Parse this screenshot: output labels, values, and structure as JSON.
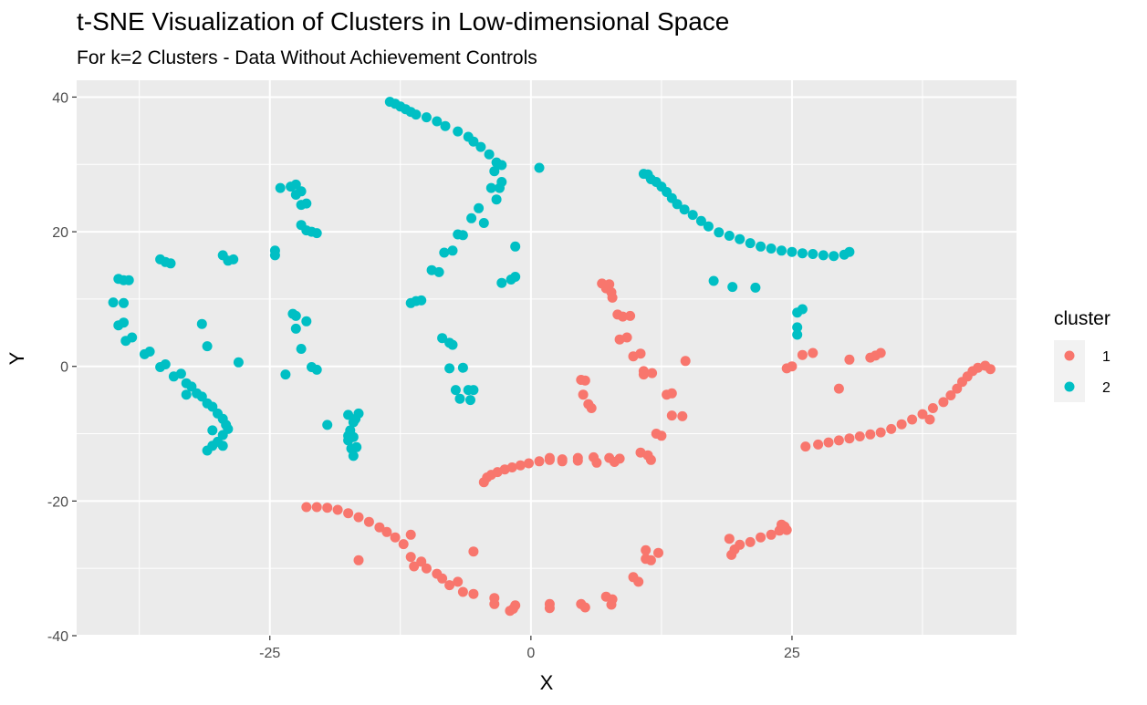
{
  "chart_data": {
    "type": "scatter",
    "title": "t-SNE Visualization of Clusters in Low-dimensional Space",
    "subtitle": "For k=2 Clusters - Data Without Achievement Controls",
    "xlabel": "X",
    "ylabel": "Y",
    "xlim": [
      -43.5,
      46.5
    ],
    "ylim": [
      -40,
      42.5
    ],
    "x_ticks": [
      -25,
      0,
      25
    ],
    "y_ticks": [
      40,
      20,
      0,
      -20,
      -40
    ],
    "x_tick_labels": [
      "-25",
      "0",
      "25"
    ],
    "y_tick_labels": [
      "40",
      "20",
      "0",
      "-20",
      "-40"
    ],
    "grid": true,
    "panel_background": "#ebebeb",
    "legend": {
      "title": "cluster",
      "position": "right"
    },
    "series": [
      {
        "name": "1",
        "color": "#f8766d",
        "points": [
          [
            -21.5,
            -20.9
          ],
          [
            -20.5,
            -20.9
          ],
          [
            -19.5,
            -21.0
          ],
          [
            -18.5,
            -21.3
          ],
          [
            -17.5,
            -21.8
          ],
          [
            -16.5,
            -22.4
          ],
          [
            -15.5,
            -23.1
          ],
          [
            -14.5,
            -23.9
          ],
          [
            -13.8,
            -24.6
          ],
          [
            -13.0,
            -25.4
          ],
          [
            -12.2,
            -26.4
          ],
          [
            -11.5,
            -25.0
          ],
          [
            -11.5,
            -28.3
          ],
          [
            -11.2,
            -29.7
          ],
          [
            -10.5,
            -29.0
          ],
          [
            -10.0,
            -30.0
          ],
          [
            -9.0,
            -30.8
          ],
          [
            -8.5,
            -31.5
          ],
          [
            -7.8,
            -32.5
          ],
          [
            -7.0,
            -32.0
          ],
          [
            -6.5,
            -33.5
          ],
          [
            -5.5,
            -27.5
          ],
          [
            -5.5,
            -33.8
          ],
          [
            -3.5,
            -34.4
          ],
          [
            -3.5,
            -35.3
          ],
          [
            -1.5,
            -35.5
          ],
          [
            -1.7,
            -36.0
          ],
          [
            -2.0,
            -36.3
          ],
          [
            1.8,
            -35.3
          ],
          [
            1.8,
            -35.9
          ],
          [
            4.8,
            -35.3
          ],
          [
            5.2,
            -35.8
          ],
          [
            7.2,
            -34.2
          ],
          [
            7.8,
            -34.6
          ],
          [
            7.7,
            -35.4
          ],
          [
            9.8,
            -31.3
          ],
          [
            10.3,
            -32.0
          ],
          [
            11.0,
            -27.3
          ],
          [
            11.0,
            -28.6
          ],
          [
            11.5,
            -28.8
          ],
          [
            12.2,
            -27.7
          ],
          [
            -16.5,
            -28.8
          ],
          [
            -4.5,
            -17.2
          ],
          [
            -4.2,
            -16.5
          ],
          [
            -3.8,
            -16.1
          ],
          [
            -3.2,
            -15.7
          ],
          [
            -2.5,
            -15.3
          ],
          [
            -1.8,
            -15.0
          ],
          [
            -1.0,
            -14.7
          ],
          [
            -0.2,
            -14.4
          ],
          [
            0.8,
            -14.1
          ],
          [
            1.8,
            -13.9
          ],
          [
            3.0,
            -13.8
          ],
          [
            4.5,
            -13.6
          ],
          [
            6.0,
            -13.5
          ],
          [
            7.5,
            -13.6
          ],
          [
            8.5,
            -13.7
          ],
          [
            1.8,
            -13.6
          ],
          [
            3.0,
            -14.1
          ],
          [
            4.5,
            -14.0
          ],
          [
            6.3,
            -14.3
          ],
          [
            8.0,
            -14.2
          ],
          [
            10.5,
            -12.8
          ],
          [
            11.2,
            -13.2
          ],
          [
            11.5,
            -13.9
          ],
          [
            6.8,
            12.3
          ],
          [
            7.2,
            11.6
          ],
          [
            7.5,
            12.2
          ],
          [
            7.7,
            11.0
          ],
          [
            7.8,
            10.2
          ],
          [
            8.3,
            7.7
          ],
          [
            8.8,
            7.4
          ],
          [
            9.5,
            7.5
          ],
          [
            9.2,
            4.3
          ],
          [
            8.5,
            4.0
          ],
          [
            9.8,
            1.5
          ],
          [
            10.5,
            1.9
          ],
          [
            10.8,
            -0.7
          ],
          [
            10.8,
            -1.2
          ],
          [
            11.6,
            -1.0
          ],
          [
            13.0,
            -4.2
          ],
          [
            13.5,
            -4.0
          ],
          [
            13.5,
            -7.3
          ],
          [
            14.5,
            -7.4
          ],
          [
            14.8,
            0.8
          ],
          [
            12.0,
            -10.0
          ],
          [
            12.5,
            -10.3
          ],
          [
            4.8,
            -2.0
          ],
          [
            5.2,
            -2.1
          ],
          [
            5.0,
            -4.2
          ],
          [
            5.5,
            -5.6
          ],
          [
            5.8,
            -6.2
          ],
          [
            26.3,
            -11.9
          ],
          [
            27.5,
            -11.6
          ],
          [
            28.5,
            -11.3
          ],
          [
            29.5,
            -11.0
          ],
          [
            30.5,
            -10.7
          ],
          [
            31.5,
            -10.4
          ],
          [
            32.5,
            -10.1
          ],
          [
            33.5,
            -9.8
          ],
          [
            34.5,
            -9.3
          ],
          [
            35.5,
            -8.6
          ],
          [
            36.5,
            -7.9
          ],
          [
            37.5,
            -7.1
          ],
          [
            38.5,
            -6.2
          ],
          [
            39.5,
            -5.3
          ],
          [
            40.2,
            -4.3
          ],
          [
            40.8,
            -3.3
          ],
          [
            41.3,
            -2.3
          ],
          [
            41.8,
            -1.5
          ],
          [
            42.3,
            -0.7
          ],
          [
            42.8,
            -0.2
          ],
          [
            43.5,
            0.1
          ],
          [
            44.0,
            -0.4
          ],
          [
            38.2,
            -7.9
          ],
          [
            19.0,
            -25.6
          ],
          [
            19.2,
            -28.0
          ],
          [
            19.5,
            -27.2
          ],
          [
            20.0,
            -26.5
          ],
          [
            21.0,
            -26.1
          ],
          [
            22.0,
            -25.4
          ],
          [
            23.0,
            -25.0
          ],
          [
            23.8,
            -24.4
          ],
          [
            24.3,
            -23.8
          ],
          [
            24.5,
            -24.3
          ],
          [
            24.0,
            -23.5
          ],
          [
            24.5,
            -0.3
          ],
          [
            25.0,
            0.0
          ],
          [
            26.0,
            1.7
          ],
          [
            27.0,
            2.0
          ],
          [
            29.5,
            -3.3
          ],
          [
            30.5,
            1.0
          ],
          [
            32.5,
            1.3
          ],
          [
            33.0,
            1.6
          ],
          [
            33.5,
            2.0
          ]
        ]
      },
      {
        "name": "2",
        "color": "#00bfc4",
        "points": [
          [
            -13.5,
            39.3
          ],
          [
            -13.0,
            39.0
          ],
          [
            -12.5,
            38.6
          ],
          [
            -12.0,
            38.2
          ],
          [
            -11.5,
            37.8
          ],
          [
            -11.0,
            37.4
          ],
          [
            -10.0,
            37.0
          ],
          [
            -9.0,
            36.4
          ],
          [
            -8.2,
            35.7
          ],
          [
            -7.0,
            34.9
          ],
          [
            -6.0,
            34.1
          ],
          [
            -5.5,
            33.4
          ],
          [
            -4.8,
            32.6
          ],
          [
            -4.0,
            31.5
          ],
          [
            -3.3,
            30.3
          ],
          [
            -2.8,
            29.9
          ],
          [
            -3.5,
            29.0
          ],
          [
            -3.8,
            26.5
          ],
          [
            -3.0,
            26.5
          ],
          [
            -2.8,
            27.4
          ],
          [
            -3.3,
            24.8
          ],
          [
            -5.0,
            23.5
          ],
          [
            -5.7,
            22.0
          ],
          [
            -4.5,
            21.3
          ],
          [
            -6.5,
            19.5
          ],
          [
            -7.0,
            19.6
          ],
          [
            -1.5,
            17.8
          ],
          [
            -7.5,
            17.2
          ],
          [
            -8.3,
            16.9
          ],
          [
            -9.5,
            14.3
          ],
          [
            -8.8,
            14.0
          ],
          [
            -10.5,
            9.8
          ],
          [
            -11.0,
            9.7
          ],
          [
            -11.5,
            9.4
          ],
          [
            -1.5,
            13.3
          ],
          [
            -1.9,
            12.9
          ],
          [
            -2.8,
            12.4
          ],
          [
            0.8,
            29.5
          ],
          [
            -8.5,
            4.2
          ],
          [
            -7.8,
            3.5
          ],
          [
            -7.5,
            3.2
          ],
          [
            -7.8,
            -0.3
          ],
          [
            -6.5,
            -0.2
          ],
          [
            -6.0,
            -3.5
          ],
          [
            -5.5,
            -3.5
          ],
          [
            -7.2,
            -3.5
          ],
          [
            -6.8,
            -4.8
          ],
          [
            -5.8,
            -5.0
          ],
          [
            10.8,
            28.6
          ],
          [
            11.2,
            28.5
          ],
          [
            11.5,
            27.8
          ],
          [
            12.0,
            27.4
          ],
          [
            12.5,
            26.7
          ],
          [
            13.0,
            25.9
          ],
          [
            13.5,
            25.0
          ],
          [
            14.0,
            24.1
          ],
          [
            14.7,
            23.3
          ],
          [
            15.5,
            22.5
          ],
          [
            16.3,
            21.6
          ],
          [
            17.0,
            20.8
          ],
          [
            18.0,
            19.9
          ],
          [
            19.0,
            19.4
          ],
          [
            20.0,
            18.9
          ],
          [
            21.0,
            18.3
          ],
          [
            22.0,
            17.8
          ],
          [
            23.0,
            17.5
          ],
          [
            24.0,
            17.2
          ],
          [
            25.0,
            17.0
          ],
          [
            26.0,
            16.8
          ],
          [
            27.0,
            16.7
          ],
          [
            28.0,
            16.5
          ],
          [
            29.0,
            16.4
          ],
          [
            30.0,
            16.6
          ],
          [
            30.5,
            17.0
          ],
          [
            17.5,
            12.7
          ],
          [
            19.3,
            11.8
          ],
          [
            21.5,
            11.7
          ],
          [
            25.5,
            8.0
          ],
          [
            25.5,
            5.8
          ],
          [
            26.0,
            8.5
          ],
          [
            25.5,
            4.7
          ],
          [
            -24.0,
            26.5
          ],
          [
            -23.0,
            26.7
          ],
          [
            -22.5,
            27.0
          ],
          [
            -22.0,
            26.0
          ],
          [
            -22.5,
            25.5
          ],
          [
            -22.0,
            24.0
          ],
          [
            -21.5,
            24.2
          ],
          [
            -22.0,
            21.0
          ],
          [
            -21.5,
            20.2
          ],
          [
            -21.0,
            20.0
          ],
          [
            -20.5,
            19.8
          ],
          [
            -24.5,
            17.2
          ],
          [
            -24.5,
            16.5
          ],
          [
            -22.8,
            7.8
          ],
          [
            -22.5,
            7.5
          ],
          [
            -21.5,
            6.7
          ],
          [
            -22.5,
            5.6
          ],
          [
            -22.0,
            2.6
          ],
          [
            -21.0,
            -0.1
          ],
          [
            -20.5,
            -0.5
          ],
          [
            -23.5,
            -1.2
          ],
          [
            -19.5,
            -8.7
          ],
          [
            -17.5,
            -7.2
          ],
          [
            -17.3,
            -9.5
          ],
          [
            -17.0,
            -8.3
          ],
          [
            -16.8,
            -7.8
          ],
          [
            -16.5,
            -7.0
          ],
          [
            -17.0,
            -10.5
          ],
          [
            -17.5,
            -11.0
          ],
          [
            -17.2,
            -12.2
          ],
          [
            -17.0,
            -13.3
          ],
          [
            -16.7,
            -12.0
          ],
          [
            -17.5,
            -10.3
          ],
          [
            -40.0,
            9.5
          ],
          [
            -39.5,
            13.0
          ],
          [
            -39.0,
            12.8
          ],
          [
            -38.5,
            12.8
          ],
          [
            -39.0,
            9.4
          ],
          [
            -39.5,
            6.1
          ],
          [
            -39.0,
            6.5
          ],
          [
            -38.8,
            3.8
          ],
          [
            -38.2,
            4.3
          ],
          [
            -37.0,
            1.8
          ],
          [
            -36.5,
            2.2
          ],
          [
            -35.5,
            -0.1
          ],
          [
            -35.0,
            0.3
          ],
          [
            -34.2,
            -1.5
          ],
          [
            -33.5,
            -1.1
          ],
          [
            -33.0,
            -2.5
          ],
          [
            -32.5,
            -3.0
          ],
          [
            -32.0,
            -4.0
          ],
          [
            -31.5,
            -4.5
          ],
          [
            -31.0,
            -5.5
          ],
          [
            -30.5,
            -6.0
          ],
          [
            -30.0,
            -7.0
          ],
          [
            -29.5,
            -7.8
          ],
          [
            -29.2,
            -8.7
          ],
          [
            -29.0,
            -9.3
          ],
          [
            -29.5,
            -10.2
          ],
          [
            -30.0,
            -11.2
          ],
          [
            -30.5,
            -11.8
          ],
          [
            -31.0,
            -12.5
          ],
          [
            -29.5,
            -11.8
          ],
          [
            -30.5,
            -9.5
          ],
          [
            -33.0,
            -4.2
          ],
          [
            -35.5,
            15.9
          ],
          [
            -35.0,
            15.5
          ],
          [
            -34.5,
            15.3
          ],
          [
            -31.5,
            6.3
          ],
          [
            -31.0,
            3.0
          ],
          [
            -29.5,
            16.5
          ],
          [
            -29.0,
            15.7
          ],
          [
            -28.5,
            15.9
          ],
          [
            -28.0,
            0.6
          ]
        ]
      }
    ]
  }
}
